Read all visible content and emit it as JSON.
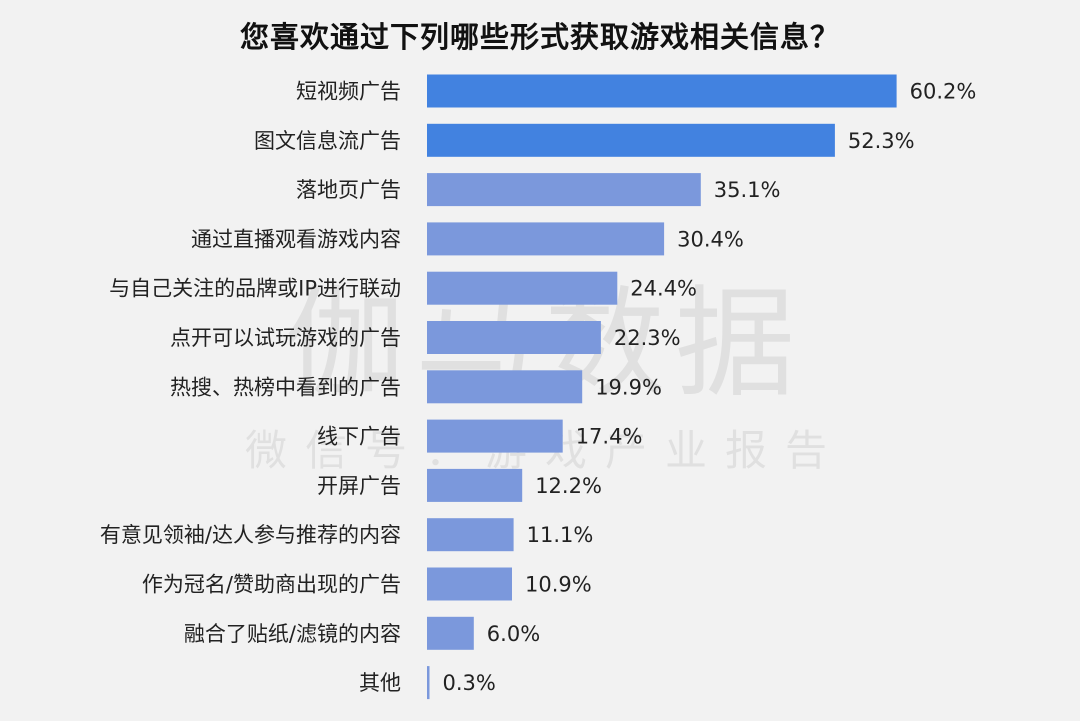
{
  "watermark": {
    "main": "伽马数据",
    "sub": "微信号：游戏产业报告"
  },
  "chart_data": {
    "type": "bar",
    "orientation": "horizontal",
    "title": "您喜欢通过下列哪些形式获取游戏相关信息？",
    "categories": [
      "短视频广告",
      "图文信息流广告",
      "落地页广告",
      "通过直播观看游戏内容",
      "与自己关注的品牌或IP进行联动",
      "点开可以试玩游戏的广告",
      "热搜、热榜中看到的广告",
      "线下广告",
      "开屏广告",
      "有意见领袖/达人参与推荐的内容",
      "作为冠名/赞助商出现的广告",
      "融合了贴纸/滤镜的内容",
      "其他"
    ],
    "values": [
      60.2,
      52.3,
      35.1,
      30.4,
      24.4,
      22.3,
      19.9,
      17.4,
      12.2,
      11.1,
      10.9,
      6.0,
      0.3
    ],
    "value_labels": [
      "60.2%",
      "52.3%",
      "35.1%",
      "30.4%",
      "24.4%",
      "22.3%",
      "19.9%",
      "17.4%",
      "12.2%",
      "11.1%",
      "10.9%",
      "6.0%",
      "0.3%"
    ],
    "unit": "%",
    "xlim": [
      0,
      65
    ],
    "grid": false,
    "colors": {
      "highlight": "#4282e0",
      "default": "#7b98dc"
    },
    "highlight_count": 2
  }
}
